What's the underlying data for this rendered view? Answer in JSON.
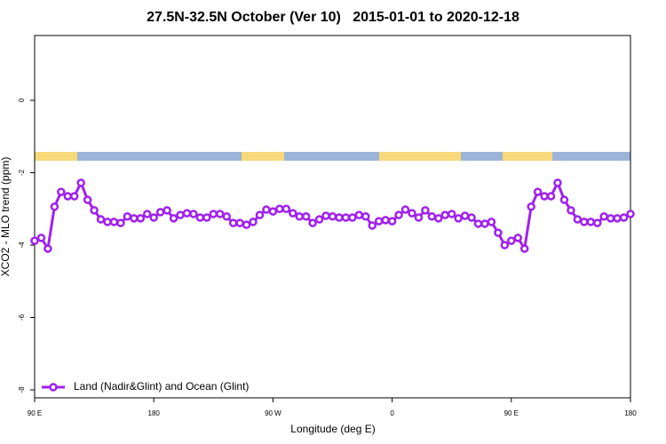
{
  "chart_data": {
    "type": "line",
    "title": "27.5N-32.5N October (Ver 10)   2015-01-01 to 2020-12-18",
    "x_label": "Longitude (deg E)",
    "y_label": "XCO2 - MLO trend (ppm)",
    "xlim": [
      90,
      540
    ],
    "ylim": [
      -8.22,
      1.79
    ],
    "xticks": [
      {
        "value": 90,
        "label": "90 E"
      },
      180,
      {
        "value": 270,
        "label": "90 W"
      },
      {
        "value": 360,
        "label": "0"
      },
      {
        "value": 450,
        "label": "90 E"
      },
      {
        "value": 540,
        "label": "180"
      }
    ],
    "yticks": [
      0,
      -2,
      -4,
      -6,
      -8
    ],
    "legend": "bottom-left",
    "x": [
      90,
      95,
      100,
      105,
      110,
      115,
      120,
      125,
      130,
      135,
      140,
      145,
      150,
      155,
      160,
      165,
      170,
      175,
      180,
      185,
      190,
      195,
      200,
      205,
      210,
      215,
      220,
      225,
      230,
      235,
      240,
      245,
      250,
      255,
      260,
      265,
      270,
      275,
      280,
      285,
      290,
      295,
      300,
      305,
      310,
      315,
      320,
      325,
      330,
      335,
      340,
      345,
      350,
      355,
      360,
      365,
      370,
      375,
      380,
      385,
      390,
      395,
      400,
      405,
      410,
      415,
      420,
      425,
      430,
      435,
      440,
      445,
      450,
      455,
      460,
      465,
      470,
      475,
      480,
      485,
      490,
      495,
      500,
      505,
      510,
      515,
      520,
      525,
      530,
      535,
      540
    ],
    "series": [
      {
        "name": "Land (Nadir&Glint) and Ocean (Glint)",
        "color": "#a020f0",
        "values": [
          -3.88,
          -3.8,
          -4.1,
          -2.94,
          -2.53,
          -2.65,
          -2.65,
          -2.28,
          -2.75,
          -3.04,
          -3.29,
          -3.36,
          -3.36,
          -3.39,
          -3.21,
          -3.26,
          -3.26,
          -3.14,
          -3.24,
          -3.09,
          -3.04,
          -3.26,
          -3.17,
          -3.12,
          -3.14,
          -3.24,
          -3.24,
          -3.14,
          -3.14,
          -3.21,
          -3.39,
          -3.39,
          -3.44,
          -3.36,
          -3.17,
          -3.02,
          -3.07,
          -3.0,
          -3.0,
          -3.12,
          -3.21,
          -3.21,
          -3.39,
          -3.29,
          -3.19,
          -3.21,
          -3.24,
          -3.24,
          -3.24,
          -3.17,
          -3.21,
          -3.46,
          -3.34,
          -3.31,
          -3.34,
          -3.17,
          -3.02,
          -3.12,
          -3.24,
          -3.04,
          -3.21,
          -3.26,
          -3.17,
          -3.14,
          -3.26,
          -3.19,
          -3.24,
          -3.41,
          -3.41,
          -3.36,
          -3.66,
          -4.0,
          -3.88,
          -3.8,
          -4.1,
          -2.94,
          -2.53,
          -2.65,
          -2.65,
          -2.28,
          -2.75,
          -3.04,
          -3.29,
          -3.36,
          -3.36,
          -3.39,
          -3.21,
          -3.26,
          -3.26,
          -3.24,
          -3.14
        ]
      }
    ]
  }
}
